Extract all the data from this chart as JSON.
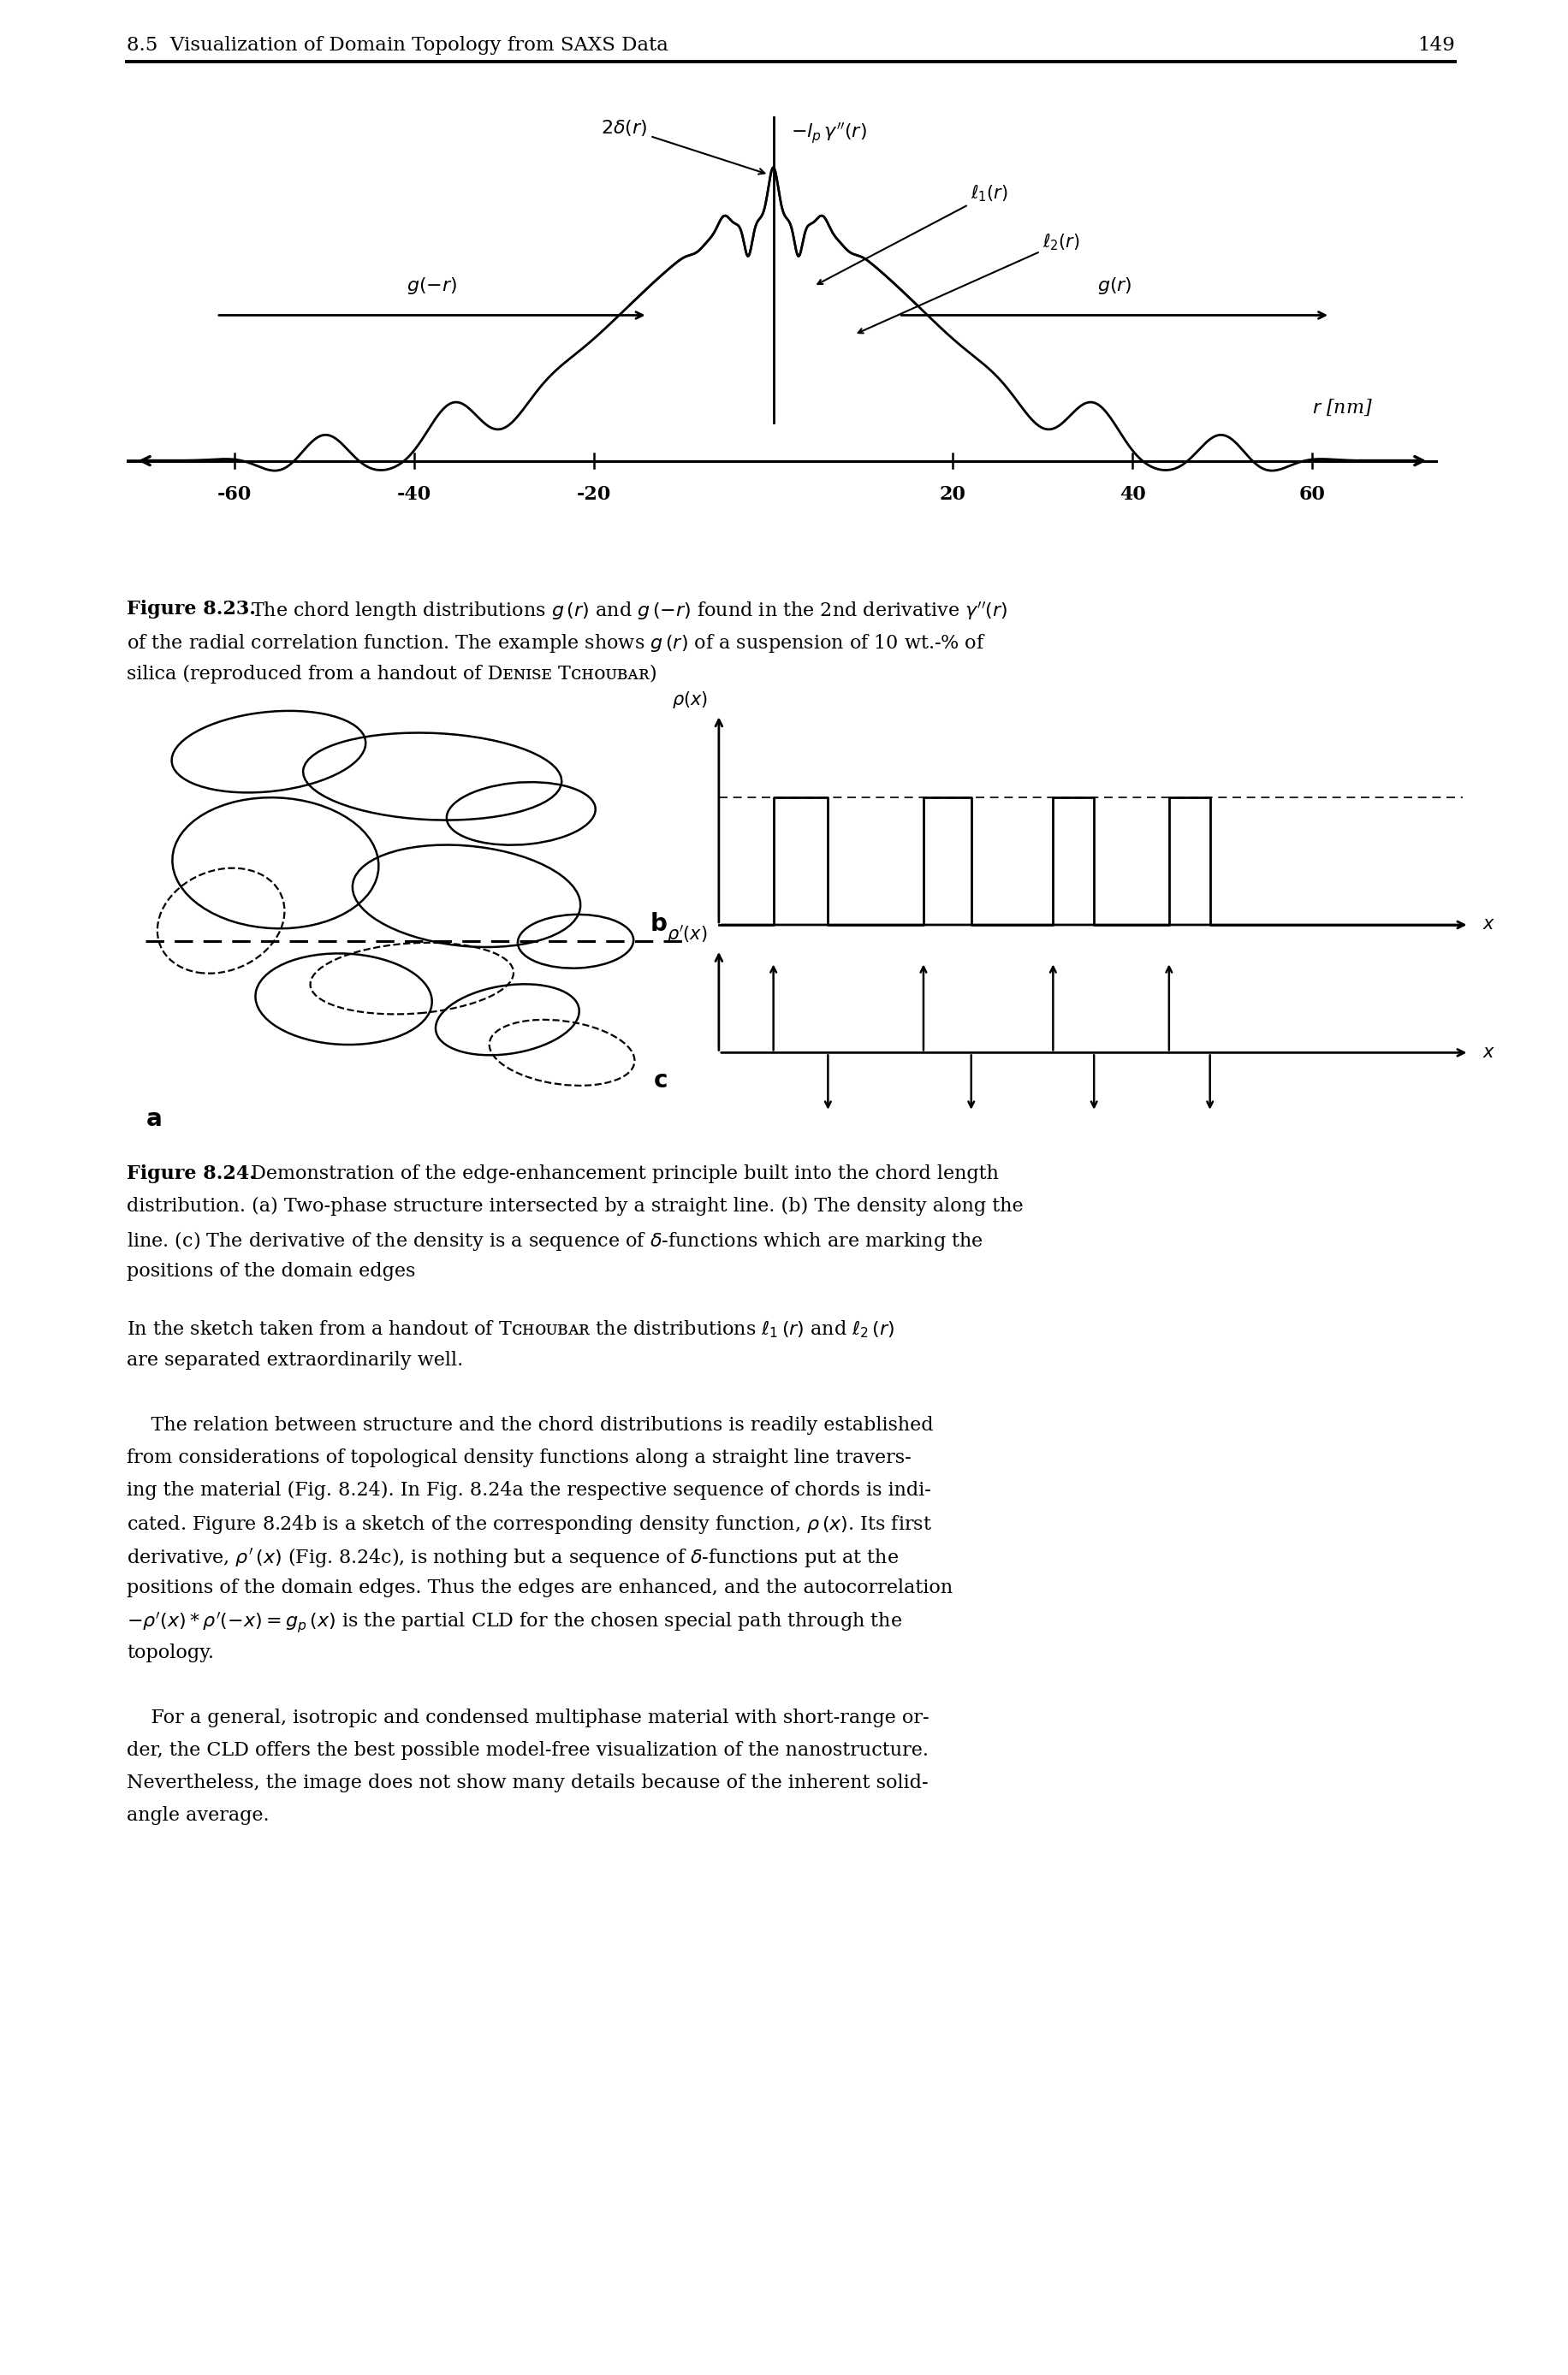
{
  "page_header": "8.5  Visualization of Domain Topology from SAXS Data",
  "page_number": "149",
  "background_color": "#ffffff",
  "text_color": "#000000",
  "plot_xlim": [
    -70,
    75
  ],
  "plot_ylim": [
    -0.55,
    1.4
  ],
  "ticks": [
    -60,
    -40,
    -20,
    20,
    40,
    60
  ],
  "fig823_bold": "Figure 8.23.",
  "fig823_line1": " The chord length distributions $g\\,(r)$ and $g\\,(-r)$ found in the 2nd derivative $\\gamma^{\\prime\\prime}(r)$",
  "fig823_line2": "of the radial correlation function. The example shows $g\\,(r)$ of a suspension of 10 wt.-% of",
  "fig823_line3": "silica (reproduced from a handout of Dᴇɴɪѕᴇ Tᴄʜᴏᴜвᴀʀ)",
  "fig824_bold": "Figure 8.24.",
  "fig824_line1": " Demonstration of the edge-enhancement principle built into the chord length",
  "fig824_line2": "distribution. (a) Two-phase structure intersected by a straight line. (b) The density along the",
  "fig824_line3": "line. (c) The derivative of the density is a sequence of $\\delta$-functions which are marking the",
  "fig824_line4": "positions of the domain edges",
  "body_para1_line1": "In the sketch taken from a handout of Tᴄʜᴏᴜвᴀʀ the distributions $\\ell_1\\,(r)$ and $\\ell_2\\,(r)$",
  "body_para1_line2": "are separated extraordinarily well.",
  "body_para2_line1": "    The relation between structure and the chord distributions is readily established",
  "body_para2_line2": "from considerations of topological density functions along a straight line travers-",
  "body_para2_line3": "ing the material (Fig. 8.24). In Fig. 8.24a the respective sequence of chords is indi-",
  "body_para2_line4": "cated. Figure 8.24b is a sketch of the corresponding density function, $\\rho\\,(x)$. Its first",
  "body_para2_line5": "derivative, $\\rho^{\\prime}\\,(x)$ (Fig. 8.24c), is nothing but a sequence of $\\delta$-functions put at the",
  "body_para2_line6": "positions of the domain edges. Thus the edges are enhanced, and the autocorrelation",
  "body_para2_line7": "$-\\rho^{\\prime}(x)*\\rho^{\\prime}(-x) = g_p\\,(x)$ is the partial CLD for the chosen special path through the",
  "body_para2_line8": "topology.",
  "body_para3_line1": "    For a general, isotropic and condensed multiphase material with short-range or-",
  "body_para3_line2": "der, the CLD offers the best possible model-free visualization of the nanostructure.",
  "body_para3_line3": "Nevertheless, the image does not show many details because of the inherent solid-",
  "body_para3_line4": "angle average."
}
